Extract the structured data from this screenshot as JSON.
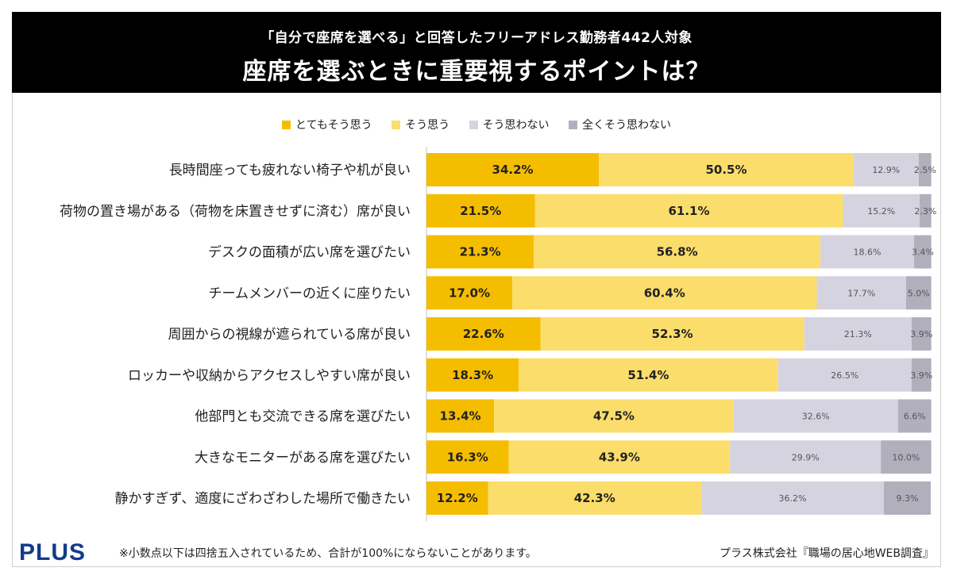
{
  "header": {
    "subtitle": "「自分で座席を選べる」と回答したフリーアドレス勤務者442人対象",
    "title": "座席を選ぶときに重要視するポイントは？"
  },
  "footer": {
    "logo": "PLUS",
    "note": "※小数点以下は四捨五入されているため、合計が100%にならないことがあります。",
    "source": "プラス株式会社『職場の居心地WEB調査』"
  },
  "chart_data": {
    "type": "bar",
    "orientation": "horizontal-stacked-100",
    "legend_position": "top-center",
    "grid": false,
    "xlim": [
      0,
      100
    ],
    "unit": "%",
    "categories": [
      "長時間座っても疲れない椅子や机が良い",
      "荷物の置き場がある（荷物を床置きせずに済む）席が良い",
      "デスクの面積が広い席を選びたい",
      "チームメンバーの近くに座りたい",
      "周囲からの視線が遮られている席が良い",
      "ロッカーや収納からアクセスしやすい席が良い",
      "他部門とも交流できる席を選びたい",
      "大きなモニターがある席を選びたい",
      "静かすぎず、適度にざわざわした場所で働きたい"
    ],
    "series": [
      {
        "name": "とてもそう思う",
        "color": "#f5bd00",
        "label_color": "#222222",
        "values": [
          34.2,
          21.5,
          21.3,
          17.0,
          22.6,
          18.3,
          13.4,
          16.3,
          12.2
        ]
      },
      {
        "name": "そう思う",
        "color": "#fbdd6b",
        "label_color": "#222222",
        "values": [
          50.5,
          61.1,
          56.8,
          60.4,
          52.3,
          51.4,
          47.5,
          43.9,
          42.3
        ]
      },
      {
        "name": "そう思わない",
        "color": "#d6d3e0",
        "label_color": "#555555",
        "values": [
          12.9,
          15.2,
          18.6,
          17.7,
          21.3,
          26.5,
          32.6,
          29.9,
          36.2
        ]
      },
      {
        "name": "全くそう思わない",
        "color": "#b2afbd",
        "label_color": "#555555",
        "values": [
          2.5,
          2.3,
          3.4,
          5.0,
          3.9,
          3.9,
          6.6,
          10.0,
          9.3
        ]
      }
    ]
  }
}
